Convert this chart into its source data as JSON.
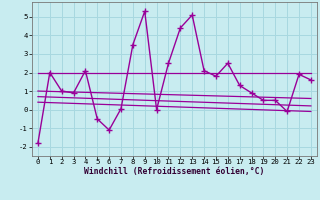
{
  "xlabel": "Windchill (Refroidissement éolien,°C)",
  "background_color": "#c8ecf0",
  "grid_color": "#a8d8e0",
  "line_color": "#990099",
  "xlim": [
    -0.5,
    23.5
  ],
  "ylim": [
    -2.5,
    5.8
  ],
  "yticks": [
    -2,
    -1,
    0,
    1,
    2,
    3,
    4,
    5
  ],
  "xticks": [
    0,
    1,
    2,
    3,
    4,
    5,
    6,
    7,
    8,
    9,
    10,
    11,
    12,
    13,
    14,
    15,
    16,
    17,
    18,
    19,
    20,
    21,
    22,
    23
  ],
  "series": [
    {
      "x": [
        0,
        1,
        2,
        3,
        4,
        5,
        6,
        7,
        8,
        9,
        10,
        11,
        12,
        13,
        14,
        15,
        16,
        17,
        18,
        19,
        20,
        21,
        22,
        23
      ],
      "y": [
        -1.8,
        2.0,
        1.0,
        0.9,
        2.1,
        -0.5,
        -1.1,
        0.05,
        3.5,
        5.3,
        0.0,
        2.5,
        4.4,
        5.1,
        2.1,
        1.8,
        2.5,
        1.3,
        0.9,
        0.5,
        0.5,
        -0.1,
        1.9,
        1.6
      ],
      "marker": "+",
      "linewidth": 1.0,
      "markersize": 4
    },
    {
      "x": [
        0,
        23
      ],
      "y": [
        2.0,
        2.0
      ],
      "marker": null,
      "linewidth": 0.9,
      "markersize": 0
    },
    {
      "x": [
        0,
        23
      ],
      "y": [
        1.0,
        0.6
      ],
      "marker": null,
      "linewidth": 0.9,
      "markersize": 0
    },
    {
      "x": [
        0,
        23
      ],
      "y": [
        0.7,
        0.2
      ],
      "marker": null,
      "linewidth": 0.9,
      "markersize": 0
    },
    {
      "x": [
        0,
        23
      ],
      "y": [
        0.4,
        -0.1
      ],
      "marker": null,
      "linewidth": 0.9,
      "markersize": 0
    }
  ]
}
